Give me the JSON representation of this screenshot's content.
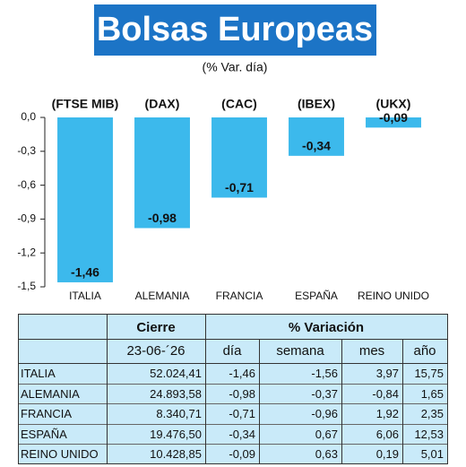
{
  "chart_data": {
    "type": "bar",
    "title": "Bolsas Europeas",
    "subtitle": "(% Var. día)",
    "categories": [
      "ITALIA",
      "ALEMANIA",
      "FRANCIA",
      "ESPAÑA",
      "REINO UNIDO"
    ],
    "indices": [
      "(FTSE MIB)",
      "(DAX)",
      "(CAC)",
      "(IBEX)",
      "(UKX)"
    ],
    "values": [
      -1.46,
      -0.98,
      -0.71,
      -0.34,
      -0.09
    ],
    "value_labels": [
      "-1,46",
      "-0,98",
      "-0,71",
      "-0,34",
      "-0,09"
    ],
    "color": "#3cb9ec",
    "ylim": [
      -1.5,
      0
    ],
    "yticks": [
      {
        "value": 0,
        "label": "0,0"
      },
      {
        "value": -0.3,
        "label": "-0,3"
      },
      {
        "value": -0.6,
        "label": "-0,6"
      },
      {
        "value": -0.9,
        "label": "-0,9"
      },
      {
        "value": -1.2,
        "label": "-1,2"
      },
      {
        "value": -1.5,
        "label": "-1,5"
      }
    ]
  },
  "table": {
    "header": [
      "Cierre",
      "% Variación"
    ],
    "subheader": [
      "23-06-´26",
      "día",
      "semana",
      "mes",
      "año"
    ],
    "rows": [
      [
        "ITALIA",
        "52.024,41",
        "-1,46",
        "-1,56",
        "3,97",
        "15,75"
      ],
      [
        "ALEMANIA",
        "24.893,58",
        "-0,98",
        "-0,37",
        "-0,84",
        "1,65"
      ],
      [
        "FRANCIA",
        "8.340,71",
        "-0,71",
        "-0,96",
        "1,92",
        "2,35"
      ],
      [
        "ESPAÑA",
        "19.476,50",
        "-0,34",
        "0,67",
        "6,06",
        "12,53"
      ],
      [
        "REINO UNIDO",
        "10.428,85",
        "-0,09",
        "0,63",
        "0,19",
        "5,01"
      ]
    ]
  }
}
